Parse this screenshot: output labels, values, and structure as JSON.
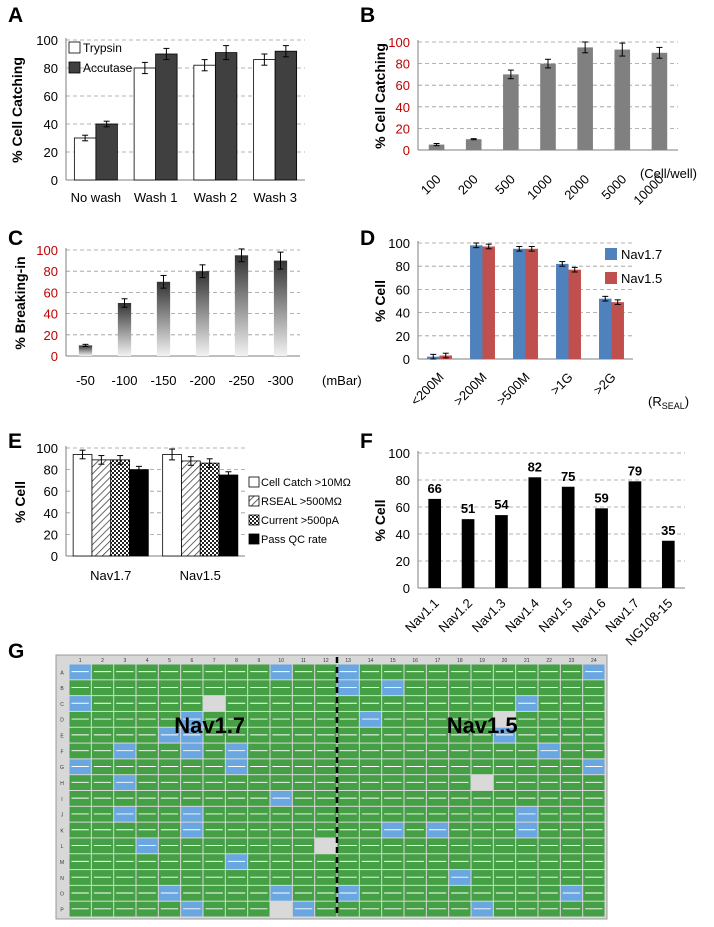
{
  "panels": {
    "A": "A",
    "B": "B",
    "C": "C",
    "D": "D",
    "E": "E",
    "F": "F",
    "G": "G"
  },
  "chart_data": [
    {
      "id": "A",
      "type": "bar",
      "ylabel": "% Cell Catching",
      "ylim": [
        0,
        100
      ],
      "yticks": [
        "0",
        "20",
        "40",
        "60",
        "80",
        "100"
      ],
      "categories": [
        "No wash",
        "Wash 1",
        "Wash 2",
        "Wash 3"
      ],
      "series": [
        {
          "name": "Trypsin",
          "values": [
            30,
            80,
            82,
            86
          ],
          "errors": [
            2,
            4,
            4,
            4
          ],
          "color": "#ffffff"
        },
        {
          "name": "Accutase",
          "values": [
            40,
            90,
            91,
            92
          ],
          "errors": [
            2,
            4,
            5,
            4
          ],
          "color": "#404040"
        }
      ],
      "legend": "top-left",
      "grid": true
    },
    {
      "id": "B",
      "type": "bar",
      "ylabel": "% Cell Catching",
      "ylim": [
        0,
        100
      ],
      "yticks": [
        "0",
        "20",
        "40",
        "60",
        "80",
        "100"
      ],
      "tick_color": "#c00000",
      "categories": [
        "100",
        "200",
        "500",
        "1000",
        "2000",
        "5000",
        "10000"
      ],
      "unit_label": "(Cell/well)",
      "values": [
        5,
        10,
        70,
        80,
        95,
        93,
        90
      ],
      "errors": [
        1,
        0.5,
        4,
        4,
        5,
        6,
        5
      ],
      "color": "#808080",
      "grid": true
    },
    {
      "id": "C",
      "type": "bar",
      "ylabel": "% Breaking-in",
      "ylim": [
        0,
        100
      ],
      "yticks": [
        "0",
        "20",
        "40",
        "60",
        "80",
        "100"
      ],
      "tick_color": "#c00000",
      "categories": [
        "-50",
        "-100",
        "-150",
        "-200",
        "-250",
        "-300"
      ],
      "unit_label": "(mBar)",
      "values": [
        10,
        50,
        70,
        80,
        95,
        90
      ],
      "errors": [
        1,
        4,
        6,
        6,
        6,
        8
      ],
      "color": "gradient-gray",
      "grid": true
    },
    {
      "id": "D",
      "type": "bar",
      "ylabel": "% Cell",
      "ylim": [
        0,
        100
      ],
      "yticks": [
        "0",
        "20",
        "40",
        "60",
        "80",
        "100"
      ],
      "categories": [
        "<200M",
        ">200M",
        ">500M",
        ">1G",
        ">2G"
      ],
      "unit_label": "(R",
      "unit_sub": "SEAL",
      "unit_close": ")",
      "series": [
        {
          "name": "Nav1.7",
          "values": [
            2,
            98,
            95,
            82,
            52
          ],
          "errors": [
            2,
            2,
            2,
            2,
            2
          ],
          "color": "#4f81bd"
        },
        {
          "name": "Nav1.5",
          "values": [
            3,
            97,
            95,
            77,
            49
          ],
          "errors": [
            2,
            2,
            2,
            2,
            2
          ],
          "color": "#c0504d"
        }
      ],
      "legend": "top-right",
      "grid": true
    },
    {
      "id": "E",
      "type": "bar",
      "ylabel": "% Cell",
      "ylim": [
        0,
        100
      ],
      "yticks": [
        "0",
        "20",
        "40",
        "60",
        "80",
        "100"
      ],
      "categories": [
        "Nav1.7",
        "Nav1.5"
      ],
      "series": [
        {
          "name": "Cell Catch >10MΩ",
          "values": [
            94,
            94
          ],
          "errors": [
            4,
            5
          ],
          "pattern": "white"
        },
        {
          "name": "RSEAL >500MΩ",
          "values": [
            89,
            88
          ],
          "errors": [
            4,
            4
          ],
          "pattern": "hatch"
        },
        {
          "name": "Current >500pA",
          "values": [
            89,
            86
          ],
          "errors": [
            4,
            4
          ],
          "pattern": "check"
        },
        {
          "name": "Pass QC rate",
          "values": [
            80,
            75
          ],
          "errors": [
            3,
            3
          ],
          "pattern": "black"
        }
      ],
      "legend": "right",
      "grid": true
    },
    {
      "id": "F",
      "type": "bar",
      "ylabel": "% Cell",
      "ylim": [
        0,
        100
      ],
      "yticks": [
        "0",
        "20",
        "40",
        "60",
        "80",
        "100"
      ],
      "categories": [
        "Nav1.1",
        "Nav1.2",
        "Nav1.3",
        "Nav1.4",
        "Nav1.5",
        "Nav1.6",
        "Nav1.7",
        "NG108-15"
      ],
      "values": [
        66,
        51,
        54,
        82,
        75,
        59,
        79,
        35
      ],
      "data_labels": [
        "66",
        "51",
        "54",
        "82",
        "75",
        "59",
        "79",
        "35"
      ],
      "color": "#000000",
      "grid": true
    }
  ],
  "plate": {
    "rows": [
      "A",
      "B",
      "C",
      "D",
      "E",
      "F",
      "G",
      "H",
      "I",
      "J",
      "K",
      "L",
      "M",
      "N",
      "O",
      "P"
    ],
    "cols": [
      "1",
      "2",
      "3",
      "4",
      "5",
      "6",
      "7",
      "8",
      "9",
      "10",
      "11",
      "12",
      "13",
      "14",
      "15",
      "16",
      "17",
      "18",
      "19",
      "20",
      "21",
      "22",
      "23",
      "24"
    ],
    "left_label": "Nav1.7",
    "right_label": "Nav1.5",
    "well_colors": {
      "pass": "#45a045",
      "fail": "#6aa6e0",
      "empty": "#d9d9d9"
    }
  }
}
